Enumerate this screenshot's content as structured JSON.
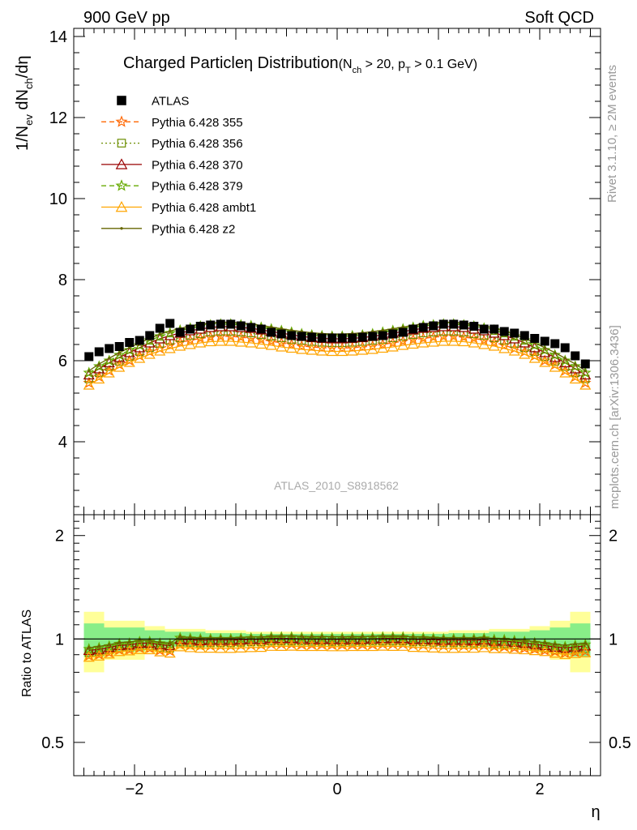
{
  "header": {
    "left": "900 GeV pp",
    "right": "Soft QCD"
  },
  "side_labels": {
    "top": "Rivet 3.1.10, ≥ 2M events",
    "bottom": "mcplots.cern.ch [arXiv:1306.3436]"
  },
  "chart_data": [
    {
      "type": "scatter",
      "title": "Charged Particle η Distribution",
      "subtitle": "(N_ch > 20, p_T > 0.1 GeV)",
      "title_parts": {
        "main": "Charged Particleη Distribution",
        "cut_open": "(N",
        "cut_sub1": "ch",
        "cut_mid": " > 20, p",
        "cut_sub2": "T",
        "cut_close": " > 0.1 GeV)"
      },
      "ylabel": "1/N_ev dN_ch/dη",
      "ylabel_parts": {
        "a": "1/N",
        "a_sub": "ev",
        "b": " dN",
        "b_sub": "ch",
        "c": "/dη"
      },
      "watermark": "ATLAS_2010_S8918562",
      "xlim": [
        -2.6,
        2.6
      ],
      "ylim": [
        2.2,
        14.2
      ],
      "y_ticks": [
        4,
        6,
        8,
        10,
        12,
        14
      ],
      "y_tick_labels": [
        "4",
        "6",
        "8",
        "10",
        "12",
        "14"
      ],
      "grid": false,
      "legend_position": "top-left",
      "series": [
        {
          "name": "ATLAS",
          "color": "#000000",
          "marker": "square",
          "line": "none",
          "x": [
            -2.45,
            -2.35,
            -2.25,
            -2.15,
            -2.05,
            -1.95,
            -1.85,
            -1.75,
            -1.65,
            -1.55,
            -1.45,
            -1.35,
            -1.25,
            -1.15,
            -1.05,
            -0.95,
            -0.85,
            -0.75,
            -0.65,
            -0.55,
            -0.45,
            -0.35,
            -0.25,
            -0.15,
            -0.05,
            0.05,
            0.15,
            0.25,
            0.35,
            0.45,
            0.55,
            0.65,
            0.75,
            0.85,
            0.95,
            1.05,
            1.15,
            1.25,
            1.35,
            1.45,
            1.55,
            1.65,
            1.75,
            1.85,
            1.95,
            2.05,
            2.15,
            2.25,
            2.35,
            2.45
          ],
          "y": [
            6.1,
            6.22,
            6.3,
            6.35,
            6.45,
            6.5,
            6.62,
            6.8,
            6.92,
            6.7,
            6.78,
            6.85,
            6.88,
            6.9,
            6.9,
            6.86,
            6.82,
            6.78,
            6.7,
            6.66,
            6.62,
            6.6,
            6.58,
            6.56,
            6.56,
            6.56,
            6.56,
            6.58,
            6.6,
            6.62,
            6.66,
            6.7,
            6.78,
            6.82,
            6.86,
            6.9,
            6.9,
            6.88,
            6.85,
            6.78,
            6.78,
            6.72,
            6.68,
            6.62,
            6.55,
            6.48,
            6.42,
            6.32,
            6.12,
            5.92
          ]
        },
        {
          "name": "Pythia 6.428 355",
          "color": "#ff6600",
          "marker": "star",
          "line": "dashed",
          "x": [
            -2.45,
            -2.35,
            -2.25,
            -2.15,
            -2.05,
            -1.95,
            -1.85,
            -1.75,
            -1.65,
            -1.55,
            -1.45,
            -1.35,
            -1.25,
            -1.15,
            -1.05,
            -0.95,
            -0.85,
            -0.75,
            -0.65,
            -0.55,
            -0.45,
            -0.35,
            -0.25,
            -0.15,
            -0.05,
            0.05,
            0.15,
            0.25,
            0.35,
            0.45,
            0.55,
            0.65,
            0.75,
            0.85,
            0.95,
            1.05,
            1.15,
            1.25,
            1.35,
            1.45,
            1.55,
            1.65,
            1.75,
            1.85,
            1.95,
            2.05,
            2.15,
            2.25,
            2.35,
            2.45
          ],
          "y": [
            5.45,
            5.6,
            5.75,
            5.9,
            6.0,
            6.12,
            6.22,
            6.3,
            6.38,
            6.45,
            6.5,
            6.55,
            6.58,
            6.6,
            6.6,
            6.58,
            6.55,
            6.52,
            6.48,
            6.44,
            6.4,
            6.36,
            6.34,
            6.32,
            6.31,
            6.31,
            6.32,
            6.34,
            6.36,
            6.4,
            6.44,
            6.48,
            6.52,
            6.55,
            6.58,
            6.6,
            6.6,
            6.58,
            6.55,
            6.5,
            6.45,
            6.38,
            6.3,
            6.22,
            6.12,
            6.0,
            5.9,
            5.75,
            5.6,
            5.45
          ]
        },
        {
          "name": "Pythia 6.428 356",
          "color": "#6b8e00",
          "marker": "open-square",
          "line": "dotted",
          "x": [
            -2.45,
            -2.35,
            -2.25,
            -2.15,
            -2.05,
            -1.95,
            -1.85,
            -1.75,
            -1.65,
            -1.55,
            -1.45,
            -1.35,
            -1.25,
            -1.15,
            -1.05,
            -0.95,
            -0.85,
            -0.75,
            -0.65,
            -0.55,
            -0.45,
            -0.35,
            -0.25,
            -0.15,
            -0.05,
            0.05,
            0.15,
            0.25,
            0.35,
            0.45,
            0.55,
            0.65,
            0.75,
            0.85,
            0.95,
            1.05,
            1.15,
            1.25,
            1.35,
            1.45,
            1.55,
            1.65,
            1.75,
            1.85,
            1.95,
            2.05,
            2.15,
            2.25,
            2.35,
            2.45
          ],
          "y": [
            5.55,
            5.7,
            5.85,
            5.98,
            6.1,
            6.22,
            6.32,
            6.42,
            6.5,
            6.56,
            6.62,
            6.66,
            6.7,
            6.72,
            6.72,
            6.7,
            6.68,
            6.64,
            6.6,
            6.56,
            6.52,
            6.5,
            6.47,
            6.45,
            6.44,
            6.44,
            6.45,
            6.47,
            6.5,
            6.52,
            6.56,
            6.6,
            6.64,
            6.68,
            6.7,
            6.72,
            6.72,
            6.7,
            6.66,
            6.62,
            6.56,
            6.5,
            6.42,
            6.32,
            6.22,
            6.1,
            5.98,
            5.85,
            5.7,
            5.55
          ]
        },
        {
          "name": "Pythia 6.428 370",
          "color": "#990000",
          "marker": "open-triangle",
          "line": "solid",
          "x": [
            -2.45,
            -2.35,
            -2.25,
            -2.15,
            -2.05,
            -1.95,
            -1.85,
            -1.75,
            -1.65,
            -1.55,
            -1.45,
            -1.35,
            -1.25,
            -1.15,
            -1.05,
            -0.95,
            -0.85,
            -0.75,
            -0.65,
            -0.55,
            -0.45,
            -0.35,
            -0.25,
            -0.15,
            -0.05,
            0.05,
            0.15,
            0.25,
            0.35,
            0.45,
            0.55,
            0.65,
            0.75,
            0.85,
            0.95,
            1.05,
            1.15,
            1.25,
            1.35,
            1.45,
            1.55,
            1.65,
            1.75,
            1.85,
            1.95,
            2.05,
            2.15,
            2.25,
            2.35,
            2.45
          ],
          "y": [
            5.65,
            5.8,
            5.95,
            6.08,
            6.2,
            6.32,
            6.44,
            6.54,
            6.62,
            6.68,
            6.74,
            6.78,
            6.82,
            6.84,
            6.84,
            6.82,
            6.8,
            6.76,
            6.72,
            6.68,
            6.64,
            6.6,
            6.57,
            6.55,
            6.54,
            6.54,
            6.55,
            6.57,
            6.6,
            6.64,
            6.68,
            6.72,
            6.76,
            6.8,
            6.82,
            6.84,
            6.84,
            6.82,
            6.78,
            6.74,
            6.68,
            6.62,
            6.54,
            6.44,
            6.32,
            6.2,
            6.08,
            5.95,
            5.8,
            5.65
          ]
        },
        {
          "name": "Pythia 6.428 379",
          "color": "#66aa00",
          "marker": "star",
          "line": "dashed",
          "x": [
            -2.45,
            -2.35,
            -2.25,
            -2.15,
            -2.05,
            -1.95,
            -1.85,
            -1.75,
            -1.65,
            -1.55,
            -1.45,
            -1.35,
            -1.25,
            -1.15,
            -1.05,
            -0.95,
            -0.85,
            -0.75,
            -0.65,
            -0.55,
            -0.45,
            -0.35,
            -0.25,
            -0.15,
            -0.05,
            0.05,
            0.15,
            0.25,
            0.35,
            0.45,
            0.55,
            0.65,
            0.75,
            0.85,
            0.95,
            1.05,
            1.15,
            1.25,
            1.35,
            1.45,
            1.55,
            1.65,
            1.75,
            1.85,
            1.95,
            2.05,
            2.15,
            2.25,
            2.35,
            2.45
          ],
          "y": [
            5.7,
            5.86,
            6.0,
            6.14,
            6.26,
            6.38,
            6.5,
            6.6,
            6.68,
            6.75,
            6.8,
            6.85,
            6.88,
            6.9,
            6.9,
            6.88,
            6.86,
            6.82,
            6.78,
            6.74,
            6.7,
            6.66,
            6.63,
            6.61,
            6.6,
            6.6,
            6.61,
            6.63,
            6.66,
            6.7,
            6.74,
            6.78,
            6.82,
            6.86,
            6.88,
            6.9,
            6.9,
            6.88,
            6.85,
            6.8,
            6.75,
            6.68,
            6.6,
            6.5,
            6.38,
            6.26,
            6.14,
            6.0,
            5.86,
            5.7
          ]
        },
        {
          "name": "Pythia 6.428 ambt1",
          "color": "#ffa500",
          "marker": "open-triangle",
          "line": "solid",
          "x": [
            -2.45,
            -2.35,
            -2.25,
            -2.15,
            -2.05,
            -1.95,
            -1.85,
            -1.75,
            -1.65,
            -1.55,
            -1.45,
            -1.35,
            -1.25,
            -1.15,
            -1.05,
            -0.95,
            -0.85,
            -0.75,
            -0.65,
            -0.55,
            -0.45,
            -0.35,
            -0.25,
            -0.15,
            -0.05,
            0.05,
            0.15,
            0.25,
            0.35,
            0.45,
            0.55,
            0.65,
            0.75,
            0.85,
            0.95,
            1.05,
            1.15,
            1.25,
            1.35,
            1.45,
            1.55,
            1.65,
            1.75,
            1.85,
            1.95,
            2.05,
            2.15,
            2.25,
            2.35,
            2.45
          ],
          "y": [
            5.4,
            5.55,
            5.7,
            5.84,
            5.96,
            6.06,
            6.16,
            6.24,
            6.3,
            6.36,
            6.4,
            6.44,
            6.47,
            6.48,
            6.48,
            6.46,
            6.44,
            6.41,
            6.38,
            6.34,
            6.31,
            6.28,
            6.26,
            6.24,
            6.23,
            6.23,
            6.24,
            6.26,
            6.28,
            6.31,
            6.34,
            6.38,
            6.41,
            6.44,
            6.46,
            6.48,
            6.48,
            6.47,
            6.44,
            6.4,
            6.36,
            6.3,
            6.24,
            6.16,
            6.06,
            5.96,
            5.84,
            5.7,
            5.55,
            5.4
          ]
        },
        {
          "name": "Pythia 6.428 z2",
          "color": "#666600",
          "marker": "dot",
          "line": "solid",
          "x": [
            -2.45,
            -2.35,
            -2.25,
            -2.15,
            -2.05,
            -1.95,
            -1.85,
            -1.75,
            -1.65,
            -1.55,
            -1.45,
            -1.35,
            -1.25,
            -1.15,
            -1.05,
            -0.95,
            -0.85,
            -0.75,
            -0.65,
            -0.55,
            -0.45,
            -0.35,
            -0.25,
            -0.15,
            -0.05,
            0.05,
            0.15,
            0.25,
            0.35,
            0.45,
            0.55,
            0.65,
            0.75,
            0.85,
            0.95,
            1.05,
            1.15,
            1.25,
            1.35,
            1.45,
            1.55,
            1.65,
            1.75,
            1.85,
            1.95,
            2.05,
            2.15,
            2.25,
            2.35,
            2.45
          ],
          "y": [
            5.75,
            5.92,
            6.06,
            6.2,
            6.32,
            6.44,
            6.55,
            6.65,
            6.73,
            6.8,
            6.85,
            6.9,
            6.93,
            6.95,
            6.95,
            6.93,
            6.91,
            6.87,
            6.83,
            6.79,
            6.75,
            6.72,
            6.69,
            6.67,
            6.66,
            6.66,
            6.67,
            6.69,
            6.72,
            6.75,
            6.79,
            6.83,
            6.87,
            6.91,
            6.93,
            6.95,
            6.95,
            6.93,
            6.9,
            6.85,
            6.8,
            6.73,
            6.65,
            6.55,
            6.44,
            6.32,
            6.2,
            6.06,
            5.92,
            5.75
          ]
        }
      ]
    },
    {
      "type": "scatter",
      "xlabel": "η",
      "ylabel": "Ratio to ATLAS",
      "xlim": [
        -2.6,
        2.6
      ],
      "ylim": [
        0.4,
        2.3
      ],
      "y_scale": "log",
      "x_ticks": [
        -2,
        0,
        2
      ],
      "x_tick_labels": [
        "−2",
        "0",
        "2"
      ],
      "y_ticks": [
        0.5,
        1,
        2
      ],
      "y_tick_labels": [
        "0.5",
        "1",
        "2"
      ],
      "reference_line": 1,
      "bands": {
        "edges": [
          -2.5,
          -2.3,
          -2.1,
          -1.9,
          -1.7,
          -1.5,
          -1.3,
          -1.1,
          -0.9,
          -0.7,
          -0.5,
          -0.3,
          -0.1,
          0.1,
          0.3,
          0.5,
          0.7,
          0.9,
          1.1,
          1.3,
          1.5,
          1.7,
          1.9,
          2.1,
          2.3,
          2.5
        ],
        "outer": [
          0.2,
          0.13,
          0.13,
          0.09,
          0.07,
          0.07,
          0.06,
          0.06,
          0.05,
          0.05,
          0.05,
          0.05,
          0.05,
          0.05,
          0.05,
          0.05,
          0.05,
          0.05,
          0.06,
          0.06,
          0.07,
          0.07,
          0.09,
          0.13,
          0.2
        ],
        "inner": [
          0.11,
          0.08,
          0.08,
          0.06,
          0.05,
          0.05,
          0.04,
          0.04,
          0.035,
          0.035,
          0.035,
          0.035,
          0.035,
          0.035,
          0.035,
          0.035,
          0.035,
          0.035,
          0.04,
          0.04,
          0.05,
          0.05,
          0.06,
          0.08,
          0.11
        ],
        "outer_color": "#ffff99",
        "inner_color": "#88ee88"
      }
    }
  ]
}
